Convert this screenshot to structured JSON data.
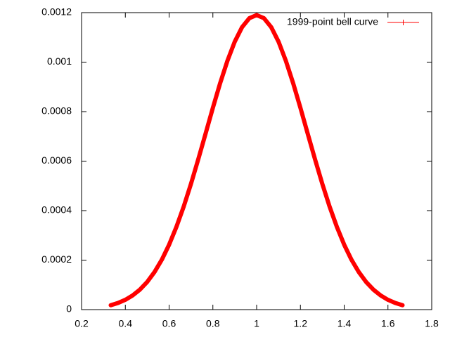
{
  "chart_data": {
    "type": "line",
    "x": [
      0.3333,
      0.3667,
      0.4,
      0.4333,
      0.4667,
      0.5,
      0.5333,
      0.5667,
      0.6,
      0.6333,
      0.6667,
      0.7,
      0.7333,
      0.7667,
      0.8,
      0.8333,
      0.8667,
      0.9,
      0.9333,
      0.9667,
      1.0,
      1.0333,
      1.0667,
      1.1,
      1.1333,
      1.1667,
      1.2,
      1.2333,
      1.2667,
      1.3,
      1.3333,
      1.3667,
      1.4,
      1.4333,
      1.4667,
      1.5,
      1.5333,
      1.5667,
      1.6,
      1.6333,
      1.6667
    ],
    "series": [
      {
        "name": "1999-point bell curve",
        "color": "#ff0000",
        "values": [
          1.78e-05,
          2.69e-05,
          3.96e-05,
          5.72e-05,
          8.09e-05,
          0.000112,
          0.0001519,
          0.0002017,
          0.0002623,
          0.000334,
          0.0004163,
          0.0005083,
          0.0006077,
          0.0007113,
          0.0008154,
          0.0009152,
          0.0010059,
          0.0010827,
          0.0011411,
          0.0011776,
          0.00119,
          0.0011776,
          0.0011411,
          0.0010827,
          0.0010059,
          0.0009152,
          0.0008154,
          0.0007113,
          0.0006077,
          0.0005083,
          0.0004163,
          0.000334,
          0.0002623,
          0.0002017,
          0.0001519,
          0.000112,
          8.09e-05,
          5.72e-05,
          3.96e-05,
          2.69e-05,
          1.78e-05
        ]
      }
    ],
    "xlim": [
      0.2,
      1.8
    ],
    "xticks": [
      0.2,
      0.4,
      0.6,
      0.8,
      1,
      1.2,
      1.4,
      1.6,
      1.8
    ],
    "ylim": [
      0,
      0.0012
    ],
    "yticks": [
      0,
      0.0002,
      0.0004,
      0.0006,
      0.0008,
      0.001,
      0.0012
    ],
    "grid": false,
    "legend": "top-right"
  }
}
